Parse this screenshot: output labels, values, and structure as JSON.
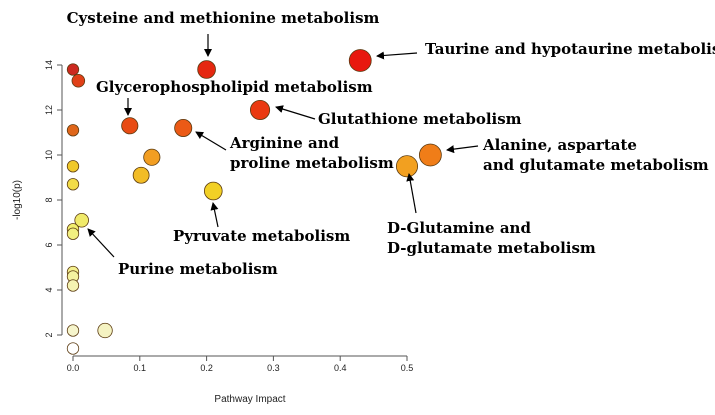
{
  "chart_data": {
    "type": "scatter",
    "title": "",
    "xlabel": "Pathway Impact",
    "ylabel": "-log10(p)",
    "xlim": [
      -0.02,
      0.55
    ],
    "ylim": [
      0.8,
      15.2
    ],
    "xticks": [
      "0.0",
      "0.1",
      "0.2",
      "0.3",
      "0.4",
      "0.5"
    ],
    "xtick_values": [
      0.0,
      0.1,
      0.2,
      0.3,
      0.4,
      0.5
    ],
    "yticks": [
      "2",
      "4",
      "6",
      "8",
      "10",
      "12",
      "14"
    ],
    "ytick_values": [
      2,
      4,
      6,
      8,
      10,
      12,
      14
    ],
    "grid": false,
    "color_scale": "yellow (low significance) to red (high significance)",
    "points": [
      {
        "id": "taurine",
        "x": 0.43,
        "y": 14.2,
        "impact_size": 1.0,
        "color": "#e8180f"
      },
      {
        "id": "cysteine",
        "x": 0.2,
        "y": 13.8,
        "impact_size": 0.72,
        "color": "#e52810"
      },
      {
        "id": "glutathione",
        "x": 0.28,
        "y": 12.0,
        "impact_size": 0.82,
        "color": "#ea3a10"
      },
      {
        "id": "glycerophospholipid",
        "x": 0.085,
        "y": 11.3,
        "impact_size": 0.62,
        "color": "#e84c14"
      },
      {
        "id": "arginine",
        "x": 0.165,
        "y": 11.2,
        "impact_size": 0.68,
        "color": "#eb5a16"
      },
      {
        "id": "alanine",
        "x": 0.535,
        "y": 10.0,
        "impact_size": 1.0,
        "color": "#f07d18"
      },
      {
        "id": "glutamine",
        "x": 0.5,
        "y": 9.5,
        "impact_size": 0.95,
        "color": "#f2a020"
      },
      {
        "id": "p_0118_99",
        "x": 0.118,
        "y": 9.9,
        "impact_size": 0.62,
        "color": "#f29e22"
      },
      {
        "id": "p_01_91",
        "x": 0.102,
        "y": 9.1,
        "impact_size": 0.6,
        "color": "#f2bc26"
      },
      {
        "id": "pyruvate",
        "x": 0.21,
        "y": 8.4,
        "impact_size": 0.72,
        "color": "#f2d025"
      },
      {
        "id": "purine",
        "x": 0.013,
        "y": 7.1,
        "impact_size": 0.45,
        "color": "#f0ea6a"
      },
      {
        "id": "p_0_138",
        "x": 0.0,
        "y": 13.8,
        "impact_size": 0.3,
        "color": "#cc2a20"
      },
      {
        "id": "p_001_133",
        "x": 0.008,
        "y": 13.3,
        "impact_size": 0.38,
        "color": "#e04018"
      },
      {
        "id": "p_0_111",
        "x": 0.0,
        "y": 11.1,
        "impact_size": 0.3,
        "color": "#e0661a"
      },
      {
        "id": "p_0_95",
        "x": 0.0,
        "y": 9.5,
        "impact_size": 0.3,
        "color": "#f0c82a"
      },
      {
        "id": "p_0_87",
        "x": 0.0,
        "y": 8.7,
        "impact_size": 0.3,
        "color": "#f2dc48"
      },
      {
        "id": "p_0_67",
        "x": 0.0,
        "y": 6.7,
        "impact_size": 0.3,
        "color": "#f2ee6e"
      },
      {
        "id": "p_0_65",
        "x": 0.0,
        "y": 6.5,
        "impact_size": 0.3,
        "color": "#f2ef80"
      },
      {
        "id": "p_0_48",
        "x": 0.0,
        "y": 4.8,
        "impact_size": 0.3,
        "color": "#f4f08e"
      },
      {
        "id": "p_0_46",
        "x": 0.0,
        "y": 4.6,
        "impact_size": 0.3,
        "color": "#f4f2a0"
      },
      {
        "id": "p_0_42",
        "x": 0.0,
        "y": 4.2,
        "impact_size": 0.3,
        "color": "#f5f3b2"
      },
      {
        "id": "p_0_22",
        "x": 0.0,
        "y": 2.2,
        "impact_size": 0.3,
        "color": "#f6f5cc"
      },
      {
        "id": "p_0048_22",
        "x": 0.048,
        "y": 2.2,
        "impact_size": 0.5,
        "color": "#f5f3c2"
      },
      {
        "id": "p_0_14",
        "x": 0.0,
        "y": 1.4,
        "impact_size": 0.3,
        "color": "#ffffff"
      }
    ],
    "annotations": [
      {
        "lines": [
          "Cysteine and methionine metabolism"
        ],
        "anchor": "middle",
        "target": "cysteine"
      },
      {
        "lines": [
          "Taurine and hypotaurine metabolism"
        ],
        "anchor": "start",
        "target": "taurine"
      },
      {
        "lines": [
          "Glycerophospholipid metabolism"
        ],
        "anchor": "start",
        "target": "glycerophospholipid"
      },
      {
        "lines": [
          "Glutathione metabolism"
        ],
        "anchor": "start",
        "target": "glutathione"
      },
      {
        "lines": [
          "Arginine and",
          "proline metabolism"
        ],
        "anchor": "start",
        "target": "arginine"
      },
      {
        "lines": [
          "Alanine, aspartate",
          "and glutamate metabolism"
        ],
        "anchor": "start",
        "target": "alanine"
      },
      {
        "lines": [
          "D-Glutamine and",
          "D-glutamate metabolism"
        ],
        "anchor": "start",
        "target": "glutamine"
      },
      {
        "lines": [
          "Pyruvate metabolism"
        ],
        "anchor": "start",
        "target": "pyruvate"
      },
      {
        "lines": [
          "Purine metabolism"
        ],
        "anchor": "start",
        "target": "purine"
      }
    ]
  }
}
